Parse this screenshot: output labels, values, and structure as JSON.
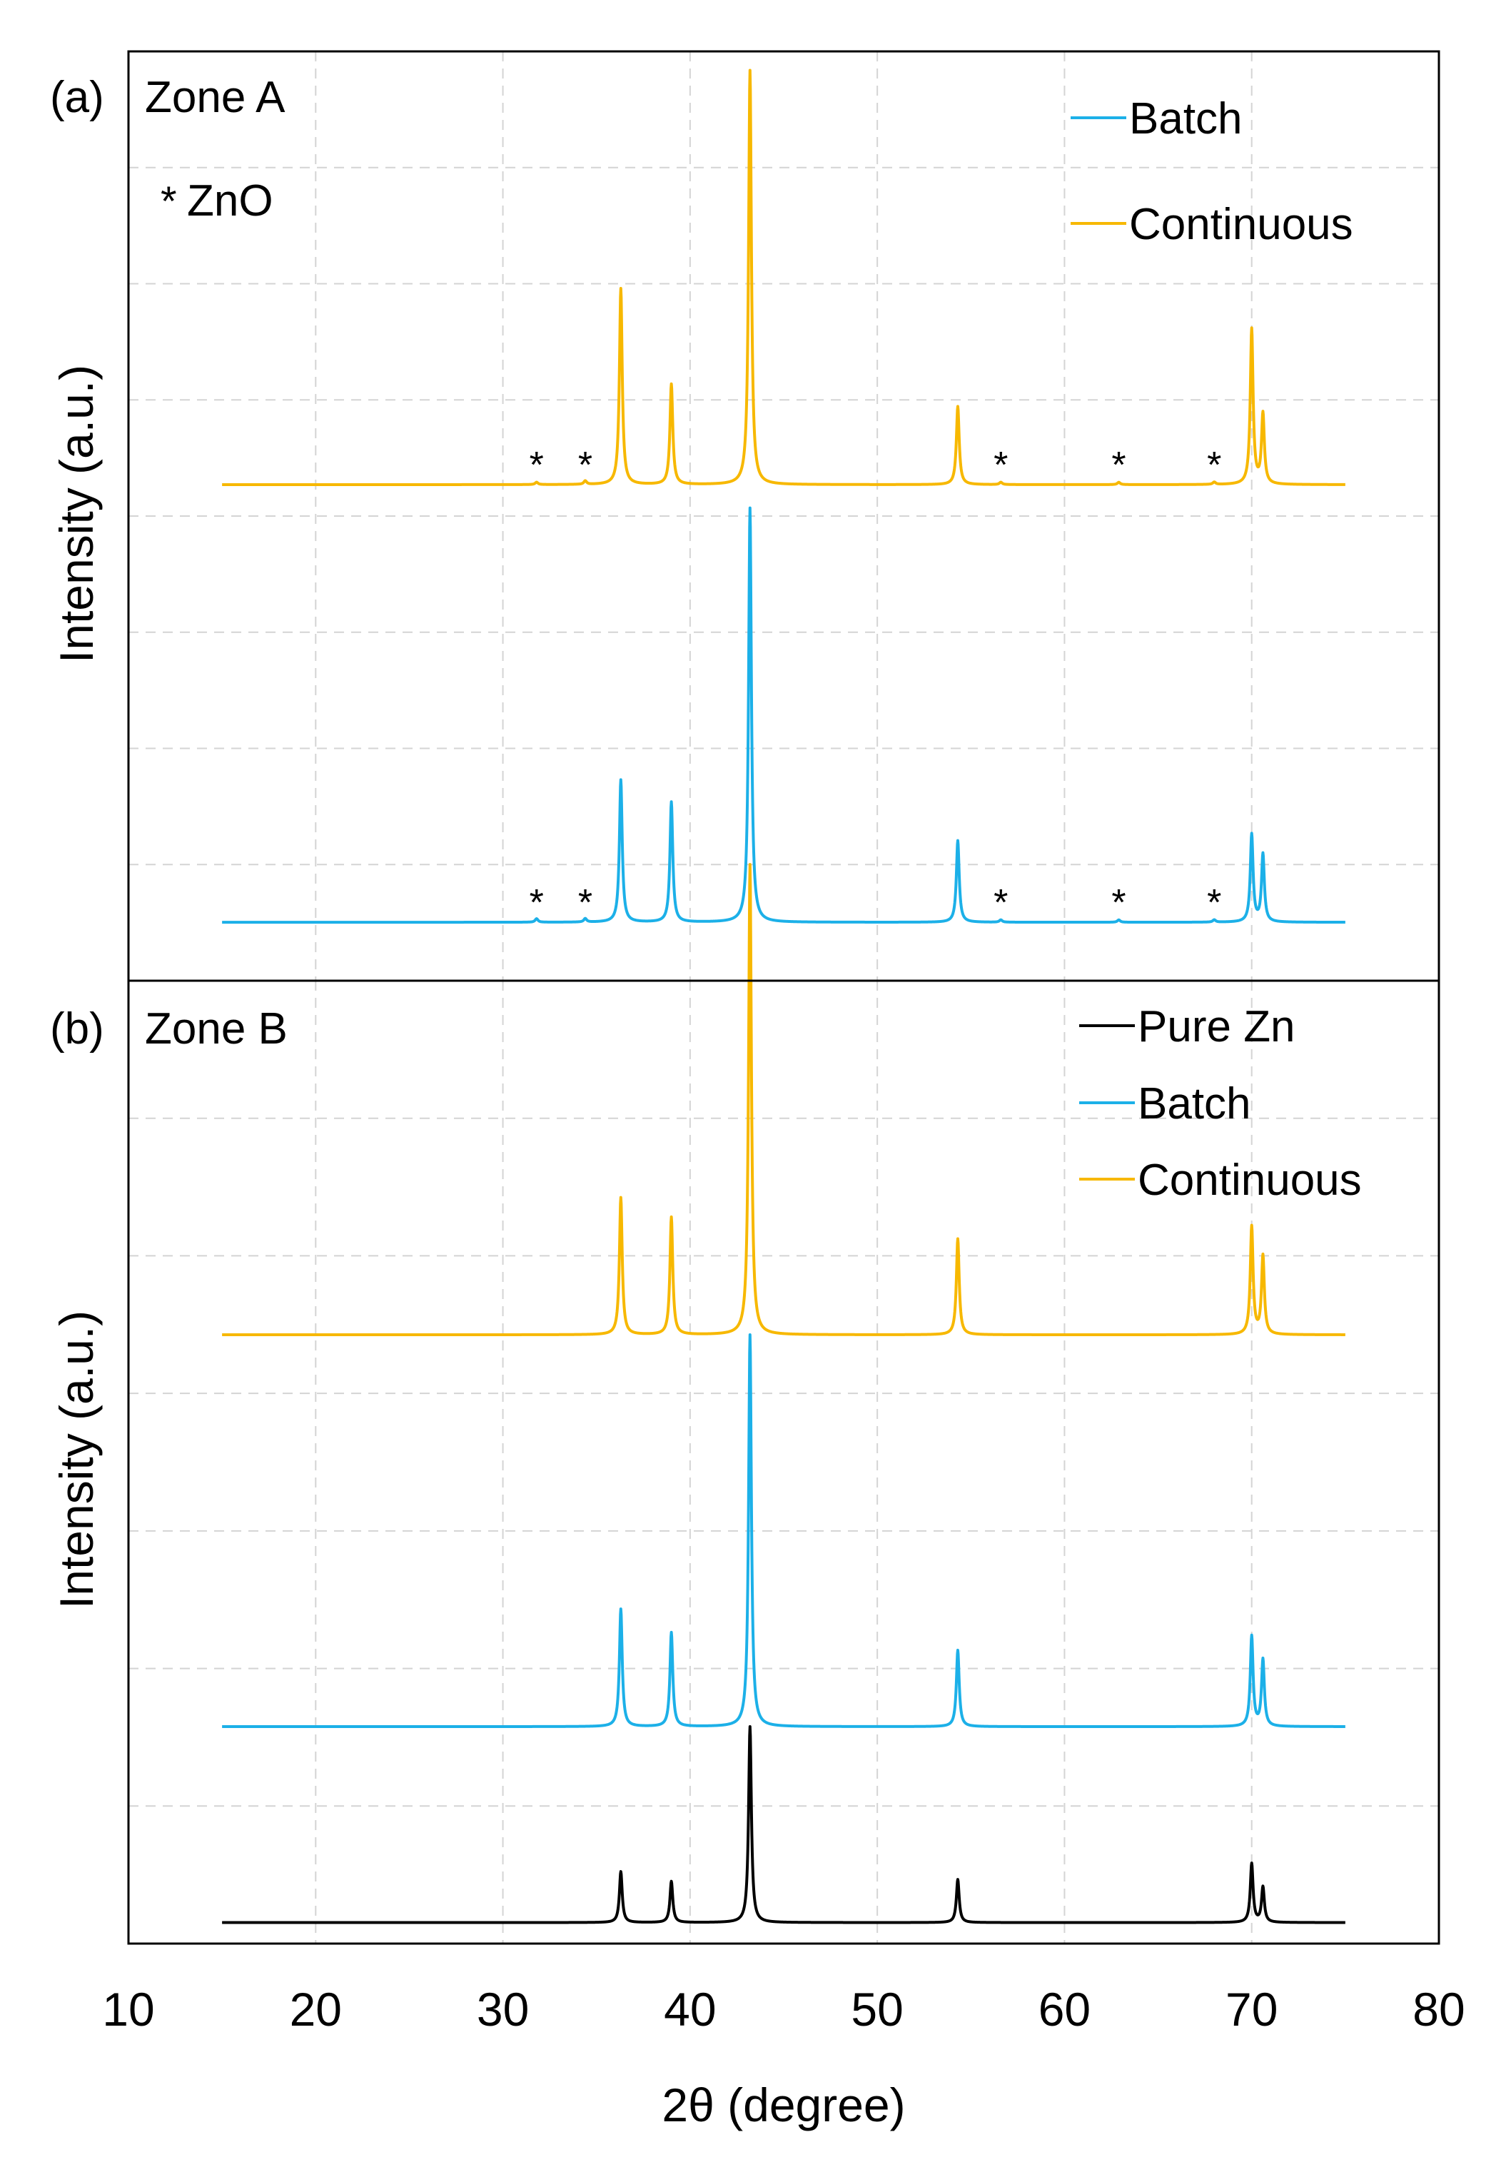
{
  "figure": {
    "xlabel": "2θ (degree)",
    "x_ticks": [
      10,
      20,
      30,
      40,
      50,
      60,
      70,
      80
    ],
    "xlim": [
      10,
      80
    ]
  },
  "chart_data": [
    {
      "type": "line",
      "panel_label": "(a)",
      "title": "Zone A",
      "annotation": "ZnO",
      "annotation_marker": "*",
      "ylabel": "Intensity (a.u.)",
      "xlim": [
        10,
        80
      ],
      "x_range": [
        15,
        75
      ],
      "y_ticks_shown": false,
      "grid": true,
      "legend_position": "top-right",
      "colors": {
        "Batch": "#1cb0e8",
        "Continuous": "#f7b800"
      },
      "series": [
        {
          "name": "Continuous",
          "baseline": 4.0,
          "peaks": [
            [
              31.8,
              0.02
            ],
            [
              34.4,
              0.03
            ],
            [
              36.3,
              1.68
            ],
            [
              39.0,
              0.86
            ],
            [
              43.2,
              3.55
            ],
            [
              54.3,
              0.67
            ],
            [
              56.6,
              0.02
            ],
            [
              62.9,
              0.02
            ],
            [
              68.0,
              0.02
            ],
            [
              70.0,
              1.33
            ],
            [
              70.6,
              0.6
            ]
          ],
          "zno_marker_x": [
            31.8,
            34.4,
            56.6,
            62.9,
            68.0
          ]
        },
        {
          "name": "Batch",
          "baseline": 0.25,
          "peaks": [
            [
              31.8,
              0.03
            ],
            [
              34.4,
              0.03
            ],
            [
              36.3,
              1.22
            ],
            [
              39.0,
              1.03
            ],
            [
              43.2,
              3.55
            ],
            [
              54.3,
              0.7
            ],
            [
              56.6,
              0.02
            ],
            [
              62.9,
              0.02
            ],
            [
              68.0,
              0.02
            ],
            [
              70.0,
              0.75
            ],
            [
              70.6,
              0.58
            ]
          ],
          "zno_marker_x": [
            31.8,
            34.4,
            56.6,
            62.9,
            68.0
          ]
        }
      ]
    },
    {
      "type": "line",
      "panel_label": "(b)",
      "title": "Zone B",
      "ylabel": "Intensity (a.u.)",
      "xlim": [
        10,
        80
      ],
      "x_range": [
        15,
        75
      ],
      "y_ticks_shown": false,
      "grid": true,
      "legend_position": "top-right",
      "colors": {
        "Pure Zn": "#000000",
        "Batch": "#1cb0e8",
        "Continuous": "#f7b800"
      },
      "series": [
        {
          "name": "Continuous",
          "baseline": 3.1,
          "peaks": [
            [
              36.3,
              0.7
            ],
            [
              39.0,
              0.6
            ],
            [
              43.2,
              2.4
            ],
            [
              54.3,
              0.49
            ],
            [
              70.0,
              0.55
            ],
            [
              70.6,
              0.4
            ]
          ]
        },
        {
          "name": "Batch",
          "baseline": 1.1,
          "peaks": [
            [
              36.3,
              0.6
            ],
            [
              39.0,
              0.48
            ],
            [
              43.2,
              2.0
            ],
            [
              54.3,
              0.39
            ],
            [
              70.0,
              0.46
            ],
            [
              70.6,
              0.34
            ]
          ]
        },
        {
          "name": "Pure Zn",
          "baseline": 0.1,
          "peaks": [
            [
              36.3,
              0.26
            ],
            [
              39.0,
              0.21
            ],
            [
              43.2,
              1.0
            ],
            [
              54.3,
              0.22
            ],
            [
              70.0,
              0.3
            ],
            [
              70.6,
              0.18
            ]
          ]
        }
      ]
    }
  ]
}
